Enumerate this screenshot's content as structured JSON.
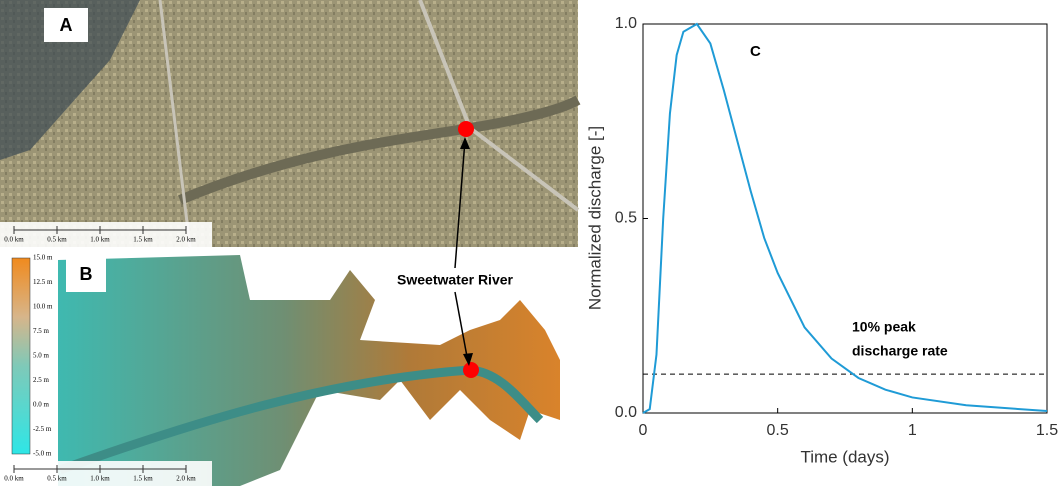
{
  "maps": {
    "a": {
      "label": "A",
      "scale_labels": [
        "0.0 km",
        "0.5 km",
        "1.0 km",
        "1.5 km",
        "2.0 km"
      ]
    },
    "b": {
      "label": "B",
      "scale_labels": [
        "0.0 km",
        "0.5 km",
        "1.0 km",
        "1.5 km",
        "2.0 km"
      ],
      "colorbar_labels": [
        "15.0 m",
        "12.5 m",
        "10.0 m",
        "7.5 m",
        "5.0 m",
        "2.5 m",
        "0.0 m",
        "-2.5 m",
        "-5.0 m"
      ]
    },
    "annotation": "Sweetwater River"
  },
  "chart_data": {
    "type": "line",
    "panel_label": "C",
    "xlabel": "Time (days)",
    "ylabel": "Normalized discharge [-]",
    "x": [
      0,
      0.025,
      0.05,
      0.075,
      0.1,
      0.125,
      0.15,
      0.2,
      0.25,
      0.3,
      0.35,
      0.4,
      0.45,
      0.5,
      0.6,
      0.7,
      0.8,
      0.9,
      1.0,
      1.2,
      1.5
    ],
    "values": [
      0,
      0.01,
      0.15,
      0.5,
      0.77,
      0.92,
      0.98,
      1.0,
      0.95,
      0.83,
      0.7,
      0.57,
      0.45,
      0.36,
      0.22,
      0.14,
      0.09,
      0.06,
      0.04,
      0.02,
      0.005
    ],
    "color": "#1f9bd6",
    "xlim": [
      0,
      1.5
    ],
    "xticks": [
      0,
      0.5,
      1,
      1.5
    ],
    "ylim": [
      0,
      1
    ],
    "yticks": [
      {
        "value": 0,
        "label": "0.0"
      },
      {
        "value": 0.5,
        "label": "0.5"
      },
      {
        "value": 1,
        "label": "1.0"
      }
    ],
    "reference_line": {
      "value": 0.1,
      "label_lines": [
        "10% peak",
        "discharge rate"
      ]
    }
  }
}
